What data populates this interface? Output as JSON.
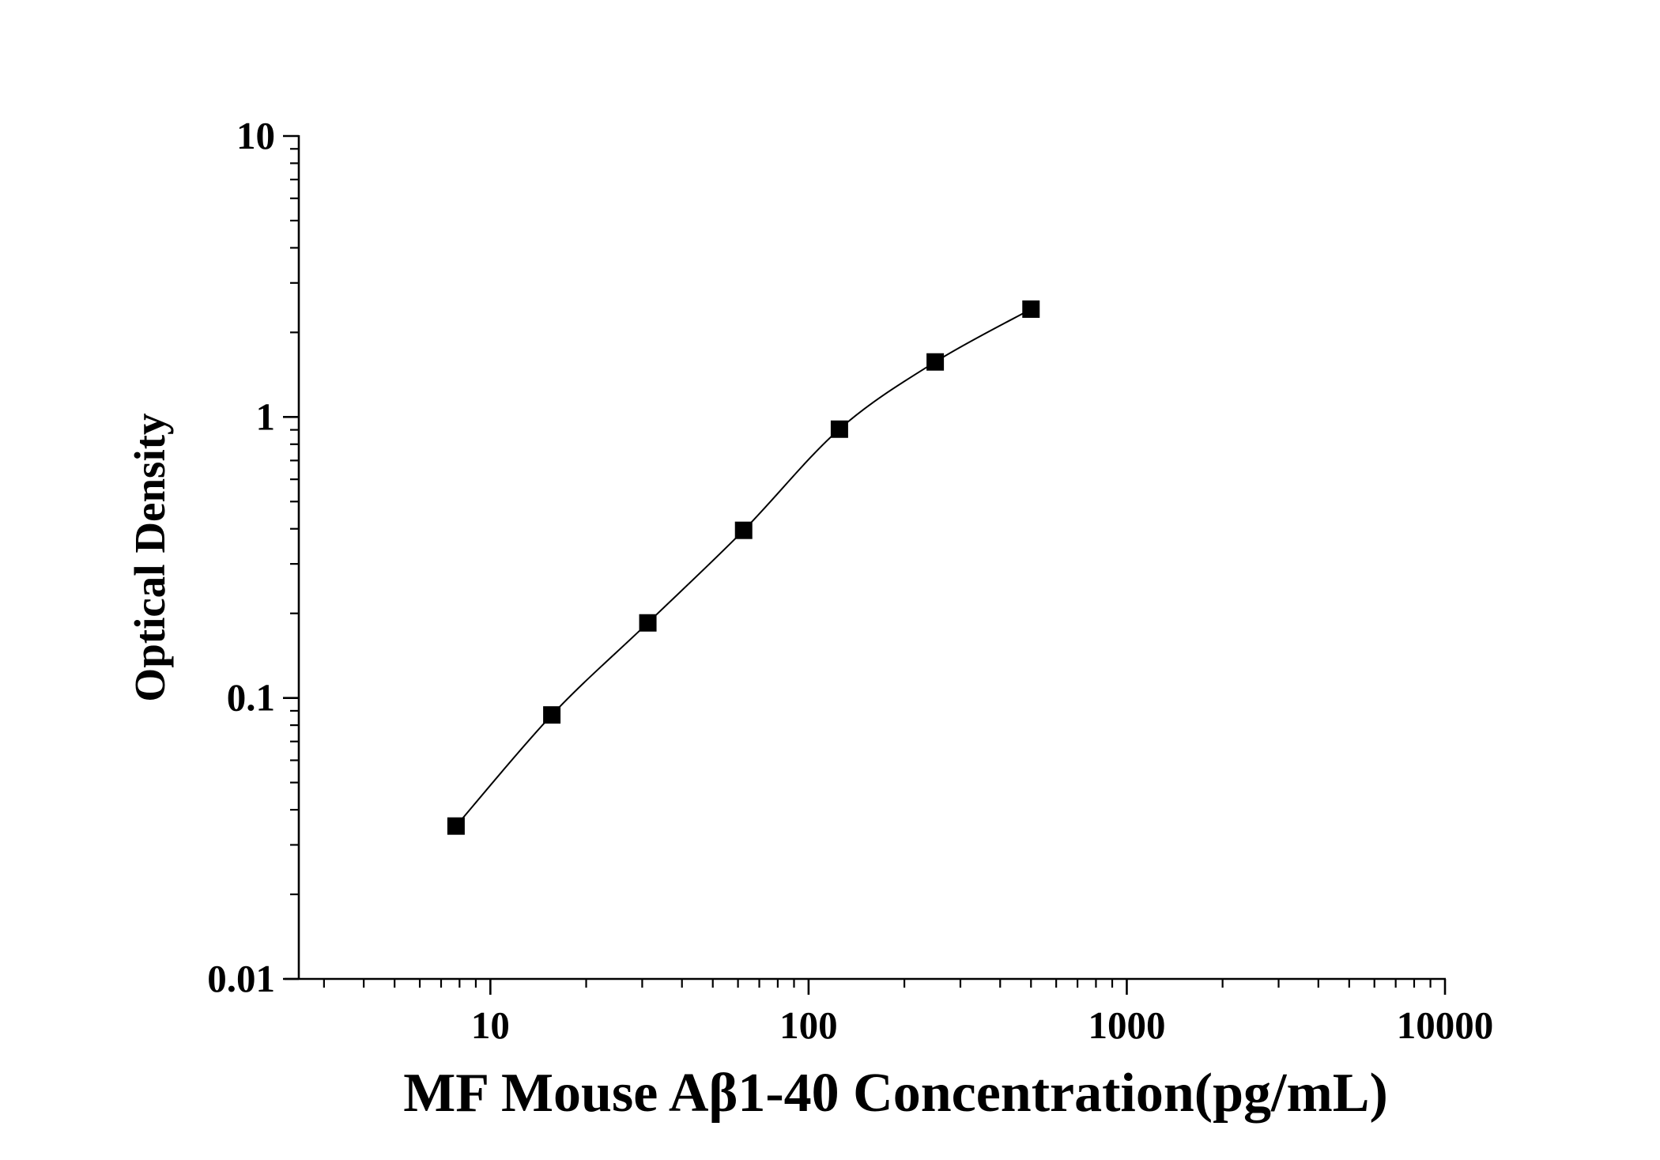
{
  "chart_data": {
    "type": "scatter",
    "xlabel": "MF Mouse Aβ1-40 Concentration(pg/mL)",
    "ylabel": "Optical Density",
    "xscale": "log",
    "yscale": "log",
    "xlim": [
      2.5,
      10000
    ],
    "ylim": [
      0.01,
      10
    ],
    "x_ticks": [
      {
        "value": 10,
        "label": "10"
      },
      {
        "value": 100,
        "label": "100"
      },
      {
        "value": 1000,
        "label": "1000"
      },
      {
        "value": 10000,
        "label": "10000"
      }
    ],
    "y_ticks": [
      {
        "value": 0.01,
        "label": "0.01"
      },
      {
        "value": 0.1,
        "label": "0.1"
      },
      {
        "value": 1,
        "label": "1"
      },
      {
        "value": 10,
        "label": "10"
      }
    ],
    "series": [
      {
        "marker": "square",
        "line": "fitted curve",
        "color": "#000000",
        "x": [
          7.8,
          15.6,
          31.25,
          62.5,
          125,
          250,
          500
        ],
        "y": [
          0.035,
          0.087,
          0.185,
          0.395,
          0.905,
          1.57,
          2.42
        ]
      }
    ],
    "grid": false,
    "legend": false
  }
}
